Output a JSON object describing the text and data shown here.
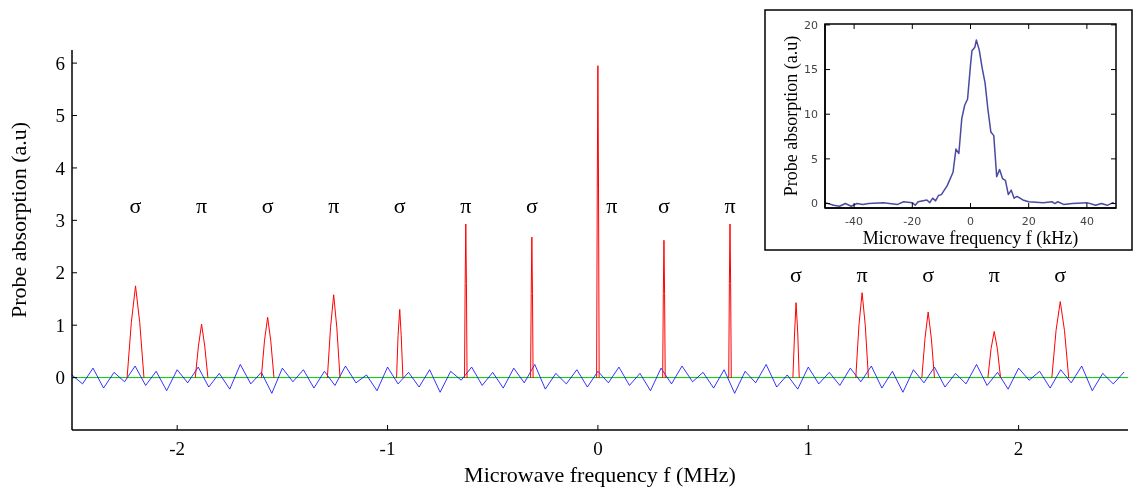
{
  "chart_data": [
    {
      "type": "line",
      "xlabel": "Microwave frequency f (MHz)",
      "ylabel": "Probe absorption (a.u)",
      "xlim": [
        -2.5,
        2.52
      ],
      "ylim": [
        -1,
        6.25
      ],
      "xticks": [
        -2,
        -1,
        0,
        1,
        2
      ],
      "yticks": [
        0,
        1,
        2,
        3,
        4,
        5,
        6
      ],
      "ref_lines": [
        {
          "axis": "y",
          "value": 0,
          "color": "#00cc00"
        }
      ],
      "series": [
        {
          "color": "#0000ff",
          "x": [
            -2.5,
            -2.45,
            -2.4,
            -2.35,
            -2.3,
            -2.25,
            -2.2,
            -2.15,
            -2.1,
            -2.05,
            -2,
            -1.95,
            -1.9,
            -1.85,
            -1.8,
            -1.75,
            -1.7,
            -1.65,
            -1.6,
            -1.55,
            -1.5,
            -1.45,
            -1.4,
            -1.35,
            -1.3,
            -1.25,
            -1.2,
            -1.15,
            -1.1,
            -1.05,
            -1,
            -0.95,
            -0.9,
            -0.85,
            -0.8,
            -0.75,
            -0.7,
            -0.65,
            -0.6,
            -0.55,
            -0.5,
            -0.45,
            -0.4,
            -0.35,
            -0.3,
            -0.25,
            -0.2,
            -0.15,
            -0.1,
            -0.05,
            0,
            0.05,
            0.1,
            0.15,
            0.2,
            0.25,
            0.3,
            0.35,
            0.4,
            0.45,
            0.5,
            0.55,
            0.6,
            0.65,
            0.7,
            0.75,
            0.8,
            0.85,
            0.9,
            0.95,
            1,
            1.05,
            1.1,
            1.15,
            1.2,
            1.25,
            1.3,
            1.35,
            1.4,
            1.45,
            1.5,
            1.55,
            1.6,
            1.65,
            1.7,
            1.75,
            1.8,
            1.85,
            1.9,
            1.95,
            2,
            2.05,
            2.1,
            2.15,
            2.2,
            2.25,
            2.3,
            2.35,
            2.4,
            2.45,
            2.5
          ],
          "values": [
            0.05,
            -0.12,
            0.18,
            -0.2,
            0.1,
            -0.08,
            0.22,
            -0.15,
            0.12,
            -0.25,
            0.15,
            -0.1,
            0.2,
            -0.18,
            0.08,
            -0.22,
            0.25,
            -0.12,
            0.1,
            -0.3,
            0.18,
            -0.08,
            0.15,
            -0.2,
            0.12,
            -0.15,
            0.22,
            -0.1,
            0.05,
            -0.25,
            0.2,
            -0.12,
            0.1,
            -0.18,
            0.15,
            -0.28,
            0.12,
            -0.05,
            0.2,
            -0.15,
            0.1,
            -0.2,
            0.18,
            -0.1,
            0.25,
            -0.22,
            0.08,
            -0.12,
            0.15,
            -0.18,
            0.12,
            -0.1,
            0.2,
            -0.15,
            0.08,
            -0.25,
            0.18,
            -0.12,
            0.22,
            -0.08,
            0.1,
            -0.2,
            0.15,
            -0.3,
            0.12,
            -0.1,
            0.25,
            -0.18,
            0.05,
            -0.22,
            0.2,
            -0.12,
            0.1,
            -0.15,
            0.18,
            -0.08,
            0.22,
            -0.2,
            0.12,
            -0.28,
            0.15,
            -0.1,
            0.2,
            -0.18,
            0.08,
            -0.12,
            0.25,
            -0.15,
            0.1,
            -0.22,
            0.18,
            -0.05,
            0.12,
            -0.2,
            0.15,
            -0.1,
            0.22,
            -0.25,
            0.08,
            -0.12,
            0.1
          ]
        },
        {
          "color": "#ff0000",
          "x": [
            -2.238,
            -2.218,
            -2.198,
            -2.178,
            -2.158,
            -2.157,
            -1.914,
            -1.899,
            -1.884,
            -1.869,
            -1.854,
            -1.853,
            -1.6,
            -1.585,
            -1.57,
            -1.555,
            -1.54,
            -1.539,
            -1.286,
            -1.271,
            -1.256,
            -1.241,
            -1.226,
            -1.225,
            -0.957,
            -0.95,
            -0.942,
            -0.935,
            -0.927,
            -0.926,
            -0.634,
            -0.631,
            -0.628,
            -0.625,
            -0.622,
            -0.621,
            -0.32,
            -0.317,
            -0.314,
            -0.311,
            -0.308,
            -0.307,
            -0.006,
            -0.003,
            0,
            0.003,
            0.006,
            0.007,
            0.308,
            0.311,
            0.314,
            0.317,
            0.32,
            0.321,
            0.622,
            0.625,
            0.628,
            0.631,
            0.634,
            0.635,
            0.927,
            0.935,
            0.942,
            0.95,
            0.957,
            0.958,
            1.226,
            1.241,
            1.256,
            1.271,
            1.286,
            1.287,
            1.54,
            1.555,
            1.57,
            1.585,
            1.6,
            1.601,
            1.854,
            1.869,
            1.884,
            1.899,
            1.914,
            1.915,
            2.158,
            2.178,
            2.198,
            2.218,
            2.238
          ],
          "values": [
            0,
            1.05,
            1.75,
            1.05,
            0,
            null,
            0,
            0.6,
            1.02,
            0.6,
            0,
            null,
            0,
            0.7,
            1.15,
            0.7,
            0,
            null,
            0,
            0.95,
            1.58,
            0.95,
            0,
            null,
            0,
            0.8,
            1.3,
            0.8,
            0,
            null,
            0,
            1.8,
            2.93,
            1.8,
            0,
            null,
            0,
            1.6,
            2.68,
            1.6,
            0,
            null,
            0,
            3.6,
            5.95,
            3.6,
            0,
            null,
            0,
            1.6,
            2.62,
            1.6,
            0,
            null,
            0,
            1.8,
            2.93,
            1.8,
            0,
            null,
            0,
            0.85,
            1.43,
            0.85,
            0,
            null,
            0,
            1,
            1.62,
            1,
            0,
            null,
            0,
            0.75,
            1.25,
            0.75,
            0,
            null,
            0,
            0.55,
            0.88,
            0.55,
            0,
            null,
            0,
            0.9,
            1.45,
            0.9,
            0
          ]
        }
      ],
      "annotations": [
        "σ",
        "π",
        "σ",
        "π",
        "σ",
        "π",
        "σ",
        "π",
        "σ",
        "π",
        "σ",
        "π",
        "σ",
        "π",
        "σ"
      ]
    },
    {
      "type": "line",
      "xlabel": "Microwave frequency f (kHz)",
      "ylabel": "Probe absorption (a.u)",
      "xlim": [
        -50,
        50
      ],
      "ylim": [
        -0.5,
        20.1
      ],
      "xticks": [
        -40,
        -20,
        0,
        20,
        40
      ],
      "yticks": [
        0,
        5,
        10,
        15,
        20
      ],
      "series": [
        {
          "color": "#4a4aa0",
          "x": [
            -50,
            -47,
            -45,
            -43,
            -41,
            -39,
            -37,
            -35,
            -30,
            -25,
            -23,
            -20,
            -19,
            -18,
            -15,
            -14,
            -13,
            -12,
            -11,
            -10,
            -8,
            -6,
            -5,
            -4,
            -3,
            -2,
            -1,
            0,
            0.5,
            1.5,
            2,
            3,
            4,
            5,
            6,
            7,
            8,
            9,
            10,
            11,
            12,
            13,
            14,
            15,
            16,
            18,
            20,
            25,
            28,
            29,
            30,
            32,
            35,
            40,
            43,
            45,
            47,
            49
          ],
          "values": [
            0.1,
            -0.2,
            -0.3,
            0,
            -0.3,
            0,
            -0.1,
            0,
            0.1,
            -0.1,
            0.2,
            0.1,
            -0.2,
            0.2,
            0.4,
            0.1,
            0.6,
            0.3,
            0.9,
            1,
            2,
            3.5,
            6.1,
            5.6,
            9.5,
            11,
            11.7,
            15.5,
            17.1,
            17.5,
            18.3,
            17.2,
            15.2,
            13.5,
            10.5,
            8,
            7.6,
            3,
            3.8,
            2.8,
            2.6,
            1,
            1.5,
            0.6,
            0.8,
            0.4,
            0.2,
            0.1,
            0.2,
            0,
            0.2,
            -0.1,
            0,
            0.1,
            -0.2,
            0,
            -0.2,
            0.1
          ]
        }
      ]
    }
  ]
}
